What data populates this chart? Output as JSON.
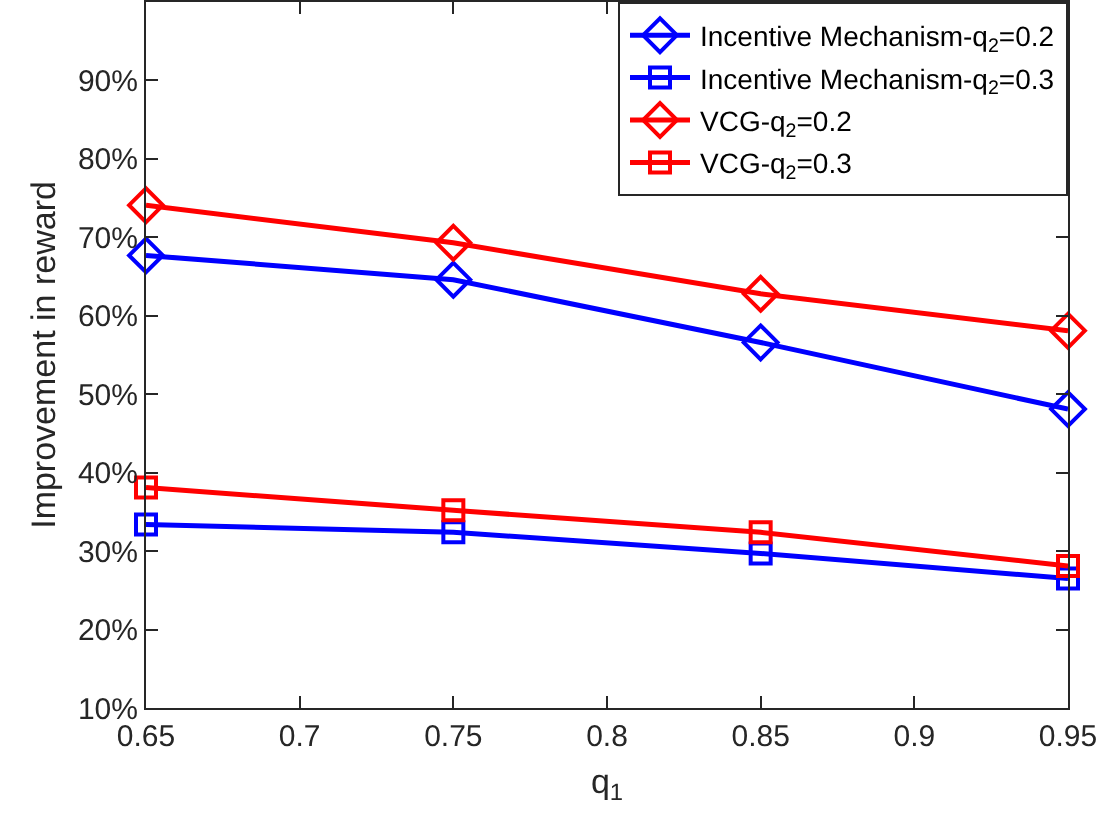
{
  "chart_data": {
    "type": "line",
    "xlabel": "q$_{1}$",
    "ylabel": "Improvement in reward",
    "x": [
      0.65,
      0.75,
      0.85,
      0.95
    ],
    "series": [
      {
        "name": "Incentive Mechanism-q$_{2}$=0.2",
        "color": "#0000ff",
        "marker": "diamond",
        "values": [
          67.7,
          64.6,
          56.6,
          48.1
        ]
      },
      {
        "name": "Incentive Mechanism-q$_{2}$=0.3",
        "color": "#0000ff",
        "marker": "square",
        "values": [
          33.4,
          32.4,
          29.7,
          26.5
        ]
      },
      {
        "name": "VCG-q$_{2}$=0.2",
        "color": "#ff0000",
        "marker": "diamond",
        "values": [
          74.1,
          69.3,
          62.8,
          58.1
        ]
      },
      {
        "name": "VCG-q$_{2}$=0.3",
        "color": "#ff0000",
        "marker": "square",
        "values": [
          38.1,
          35.2,
          32.4,
          28.1
        ]
      }
    ],
    "xlim": [
      0.65,
      0.95
    ],
    "xticks": [
      0.65,
      0.7,
      0.75,
      0.8,
      0.85,
      0.9,
      0.95
    ],
    "ylim": [
      10,
      100
    ],
    "yticks": [
      {
        "value": 10,
        "label": "10%"
      },
      {
        "value": 20,
        "label": "20%"
      },
      {
        "value": 30,
        "label": "30%"
      },
      {
        "value": 40,
        "label": "40%"
      },
      {
        "value": 50,
        "label": "50%"
      },
      {
        "value": 60,
        "label": "60%"
      },
      {
        "value": 70,
        "label": "70%"
      },
      {
        "value": 80,
        "label": "80%"
      },
      {
        "value": 90,
        "label": "90%"
      }
    ],
    "grid": false,
    "legend": "top right",
    "line_style": "solid"
  }
}
